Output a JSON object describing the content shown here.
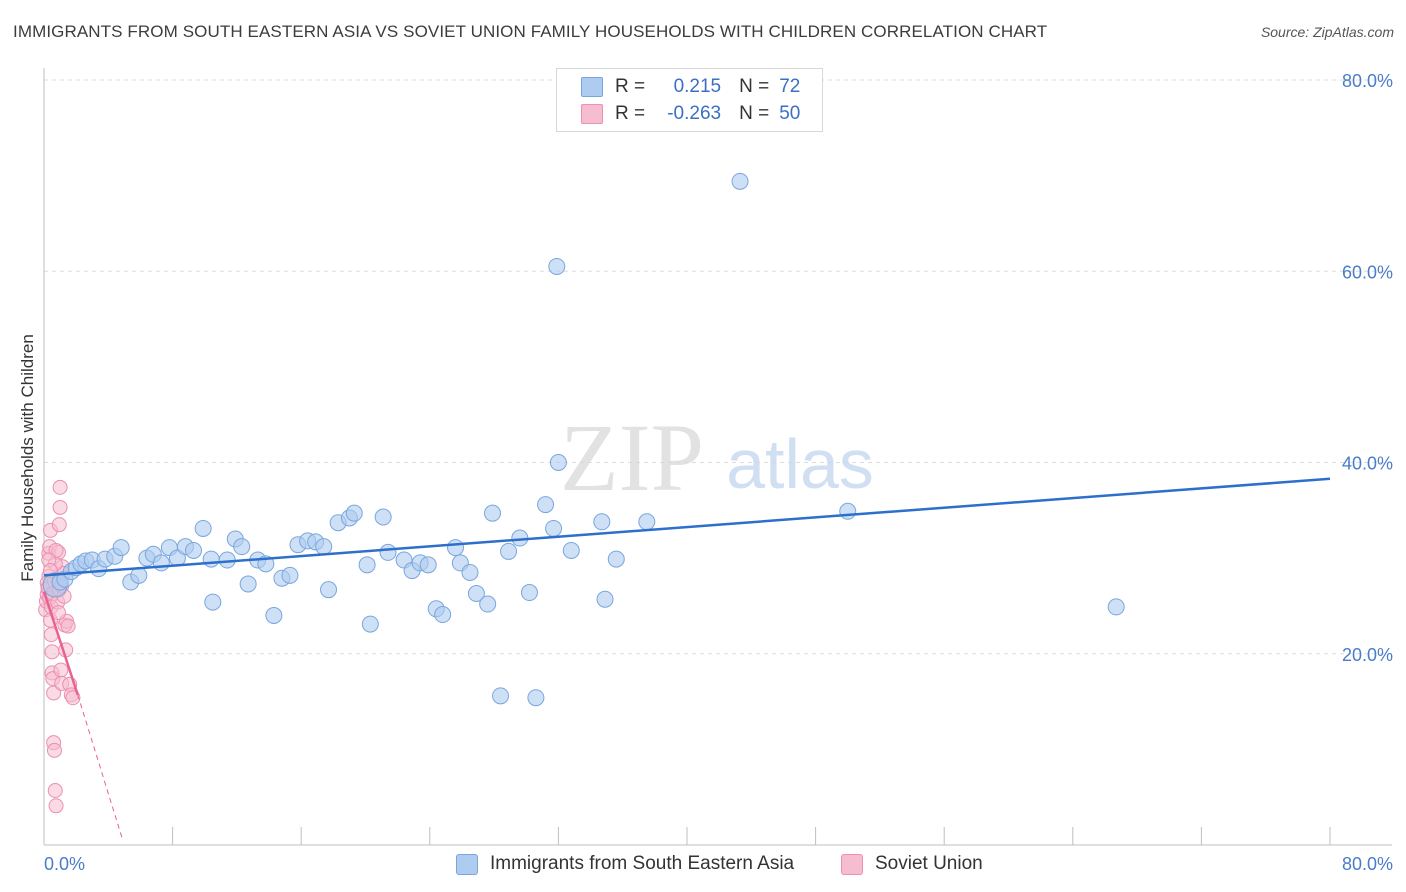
{
  "title": "IMMIGRANTS FROM SOUTH EASTERN ASIA VS SOVIET UNION FAMILY HOUSEHOLDS WITH CHILDREN CORRELATION CHART",
  "source": "Source: ZipAtlas.com",
  "watermark": {
    "zip": "ZIP",
    "atlas": "atlas"
  },
  "legend_stats": [
    {
      "r_label": "R =",
      "r_value": "0.215",
      "n_label": "N =",
      "n_value": "72"
    },
    {
      "r_label": "R =",
      "r_value": "-0.263",
      "n_label": "N =",
      "n_value": "50"
    }
  ],
  "colors": {
    "blue_fill": "#aecbf0",
    "blue_stroke": "#7aa6dd",
    "blue_line": "#2d6fcc",
    "pink_fill": "#f6bcd0",
    "pink_stroke": "#ec8fb0",
    "pink_line": "#e8628e",
    "grid": "#dcdcdc",
    "axis_text": "#4a7cc9"
  },
  "chart_data": {
    "type": "scatter",
    "title": "IMMIGRANTS FROM SOUTH EASTERN ASIA VS SOVIET UNION FAMILY HOUSEHOLDS WITH CHILDREN CORRELATION CHART",
    "xlabel": "",
    "ylabel": "Family Households with Children",
    "xlim": [
      0,
      80
    ],
    "ylim": [
      0,
      80
    ],
    "x_tick_labels": [
      "0.0%",
      "80.0%"
    ],
    "y_ticks": [
      20,
      40,
      60,
      80
    ],
    "y_tick_labels": [
      "20.0%",
      "40.0%",
      "60.0%",
      "80.0%"
    ],
    "grid": true,
    "series": [
      {
        "name": "Immigrants from South Eastern Asia",
        "color": "#aecbf0",
        "trend": {
          "x": [
            0,
            80
          ],
          "y": [
            28.2,
            38.3
          ]
        },
        "points": [
          [
            0.7,
            27.2
          ],
          [
            1.0,
            27.5
          ],
          [
            1.3,
            27.8
          ],
          [
            1.7,
            28.6
          ],
          [
            2.0,
            29.0
          ],
          [
            2.3,
            29.4
          ],
          [
            2.6,
            29.7
          ],
          [
            3.0,
            29.8
          ],
          [
            3.4,
            28.9
          ],
          [
            3.8,
            29.9
          ],
          [
            4.4,
            30.2
          ],
          [
            4.8,
            31.1
          ],
          [
            5.4,
            27.5
          ],
          [
            5.9,
            28.2
          ],
          [
            6.4,
            30.0
          ],
          [
            6.8,
            30.4
          ],
          [
            7.3,
            29.5
          ],
          [
            7.8,
            31.1
          ],
          [
            8.3,
            30.0
          ],
          [
            8.8,
            31.2
          ],
          [
            9.3,
            30.8
          ],
          [
            9.9,
            33.1
          ],
          [
            10.4,
            29.9
          ],
          [
            10.5,
            25.4
          ],
          [
            11.4,
            29.8
          ],
          [
            11.9,
            32.0
          ],
          [
            12.3,
            31.2
          ],
          [
            12.7,
            27.3
          ],
          [
            13.3,
            29.8
          ],
          [
            13.8,
            29.4
          ],
          [
            14.3,
            24.0
          ],
          [
            14.8,
            27.9
          ],
          [
            15.3,
            28.2
          ],
          [
            15.8,
            31.4
          ],
          [
            16.4,
            31.8
          ],
          [
            16.9,
            31.7
          ],
          [
            17.4,
            31.2
          ],
          [
            17.7,
            26.7
          ],
          [
            18.3,
            33.7
          ],
          [
            19.0,
            34.2
          ],
          [
            19.3,
            34.7
          ],
          [
            20.1,
            29.3
          ],
          [
            20.3,
            23.1
          ],
          [
            21.1,
            34.3
          ],
          [
            21.4,
            30.6
          ],
          [
            22.4,
            29.8
          ],
          [
            22.9,
            28.7
          ],
          [
            23.4,
            29.5
          ],
          [
            23.9,
            29.3
          ],
          [
            24.4,
            24.7
          ],
          [
            24.8,
            24.1
          ],
          [
            25.6,
            31.1
          ],
          [
            25.9,
            29.5
          ],
          [
            26.5,
            28.5
          ],
          [
            26.9,
            26.3
          ],
          [
            27.6,
            25.2
          ],
          [
            27.9,
            34.7
          ],
          [
            28.4,
            15.6
          ],
          [
            28.9,
            30.7
          ],
          [
            29.6,
            32.1
          ],
          [
            30.2,
            26.4
          ],
          [
            30.6,
            15.4
          ],
          [
            31.2,
            35.6
          ],
          [
            31.7,
            33.1
          ],
          [
            32.0,
            40.0
          ],
          [
            32.8,
            30.8
          ],
          [
            34.7,
            33.8
          ],
          [
            34.9,
            25.7
          ],
          [
            35.6,
            29.9
          ],
          [
            37.5,
            33.8
          ],
          [
            43.3,
            69.4
          ],
          [
            50.0,
            34.9
          ],
          [
            66.7,
            24.9
          ],
          [
            31.9,
            60.5
          ]
        ]
      },
      {
        "name": "Soviet Union",
        "color": "#f6bcd0",
        "trend": {
          "x": [
            0,
            2.1
          ],
          "y": [
            26.5,
            15.7
          ],
          "dashed_to": {
            "x": 4.9,
            "y": 0.5
          }
        },
        "points": [
          [
            0.1,
            24.6
          ],
          [
            0.15,
            25.5
          ],
          [
            0.2,
            26.2
          ],
          [
            0.25,
            27.0
          ],
          [
            0.3,
            28.1
          ],
          [
            0.3,
            30.5
          ],
          [
            0.35,
            31.2
          ],
          [
            0.4,
            32.9
          ],
          [
            0.4,
            23.5
          ],
          [
            0.45,
            22.0
          ],
          [
            0.5,
            20.2
          ],
          [
            0.5,
            18.0
          ],
          [
            0.55,
            17.4
          ],
          [
            0.6,
            15.9
          ],
          [
            0.6,
            10.7
          ],
          [
            0.65,
            9.9
          ],
          [
            0.7,
            5.7
          ],
          [
            0.75,
            4.1
          ],
          [
            0.8,
            26.6
          ],
          [
            0.85,
            27.8
          ],
          [
            0.9,
            30.6
          ],
          [
            0.95,
            33.5
          ],
          [
            1.0,
            35.3
          ],
          [
            1.0,
            37.4
          ],
          [
            1.05,
            18.3
          ],
          [
            1.1,
            16.9
          ],
          [
            1.15,
            29.1
          ],
          [
            1.2,
            28.4
          ],
          [
            1.3,
            23.0
          ],
          [
            1.35,
            20.4
          ],
          [
            1.4,
            23.4
          ],
          [
            1.5,
            22.9
          ],
          [
            1.6,
            16.8
          ],
          [
            1.7,
            15.7
          ],
          [
            1.8,
            15.4
          ],
          [
            0.2,
            27.4
          ],
          [
            0.25,
            26.8
          ],
          [
            0.35,
            25.8
          ],
          [
            0.45,
            24.9
          ],
          [
            0.55,
            26.3
          ],
          [
            0.65,
            27.6
          ],
          [
            0.7,
            29.4
          ],
          [
            0.75,
            30.8
          ],
          [
            0.85,
            25.4
          ],
          [
            0.9,
            24.3
          ],
          [
            0.95,
            26.7
          ],
          [
            1.1,
            27.1
          ],
          [
            1.25,
            26.0
          ],
          [
            0.3,
            29.8
          ],
          [
            0.4,
            28.7
          ]
        ]
      }
    ]
  }
}
